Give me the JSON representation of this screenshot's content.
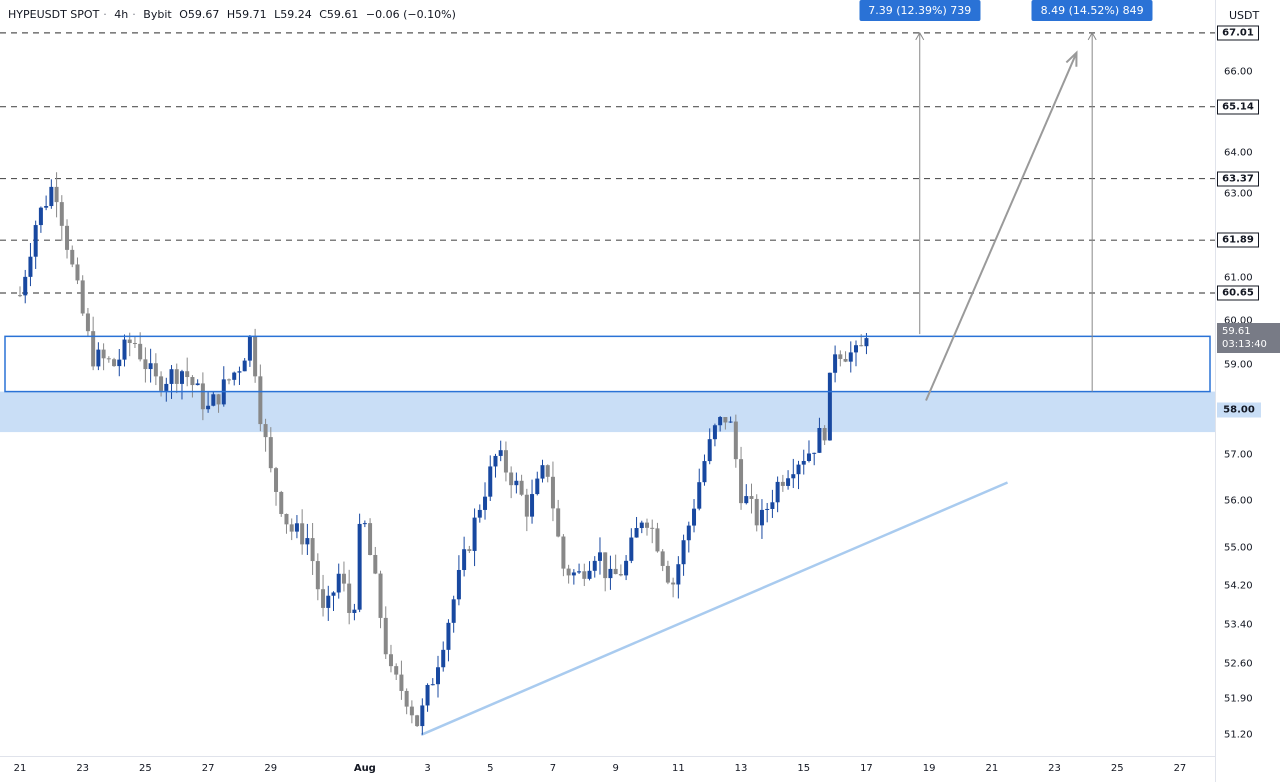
{
  "header": {
    "symbol": "HYPEUSDT SPOT",
    "interval": "4h",
    "exchange": "Bybit",
    "open": "O59.67",
    "high": "H59.71",
    "low": "L59.24",
    "close": "C59.61",
    "change": "−0.06 (−0.10%)"
  },
  "price_scale": {
    "currency": "USDT",
    "current_price": "59.61",
    "countdown": "03:13:40"
  },
  "measurements": [
    {
      "text": "7.39 (12.39%) 739"
    },
    {
      "text": "8.49 (14.52%) 849"
    }
  ],
  "colors": {
    "up": "#1848a0",
    "down": "#888888",
    "zone_fill": "#c9def6",
    "trendline": "#a9cbef",
    "box": "#2a72d6",
    "dashed": "#555555",
    "arrow": "#9a9a9a"
  },
  "chart_data": {
    "type": "candlestick",
    "xaxis_ticks": [
      "21",
      "23",
      "25",
      "27",
      "29",
      "Aug",
      "3",
      "5",
      "7",
      "9",
      "11",
      "13",
      "15",
      "17",
      "19",
      "21",
      "23",
      "25",
      "27"
    ],
    "y_scale": "log",
    "ylim": [
      51.0,
      67.6
    ],
    "yaxis_ticks": [
      "66.00",
      "64.00",
      "63.00",
      "61.00",
      "60.00",
      "59.00",
      "57.00",
      "56.00",
      "55.00",
      "54.20",
      "53.40",
      "52.60",
      "51.90",
      "51.20"
    ],
    "horizontal_levels": [
      "67.01",
      "65.14",
      "63.37",
      "61.89",
      "60.65"
    ],
    "zone_label": "58.00",
    "zone_range": [
      57.5,
      58.4
    ],
    "box_range": [
      58.4,
      59.65
    ],
    "trendline": {
      "from": {
        "date": "Aug 2",
        "price": 51.2
      },
      "to": {
        "date": "Aug 21",
        "price": 56.4
      }
    },
    "last_close": 59.61
  }
}
